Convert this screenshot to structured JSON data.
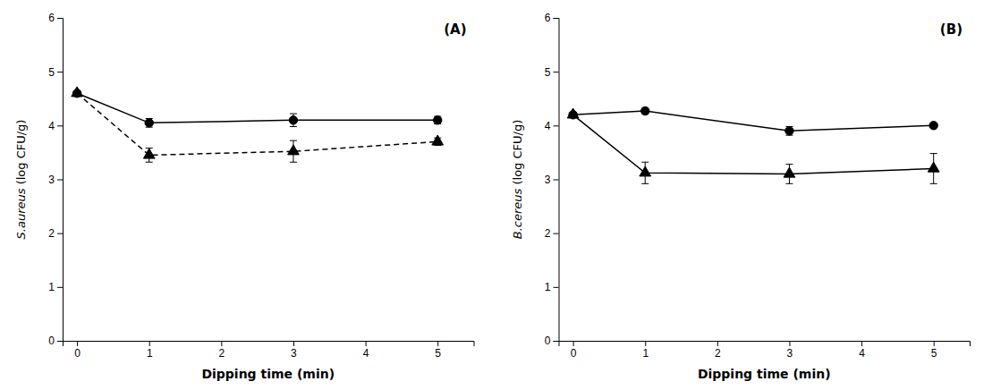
{
  "chart_data": [
    {
      "type": "line",
      "annotation": "(A)",
      "xlabel": "Dipping time (min)",
      "ylabel": "S.aureus (log CFU/g)",
      "x": [
        0,
        1,
        3,
        5
      ],
      "series": [
        {
          "values": [
            4.6,
            4.05,
            4.1,
            4.1
          ],
          "errors": [
            0.04,
            0.08,
            0.12,
            0.07
          ],
          "color": "#000000",
          "marker": "circle",
          "line_style": "solid"
        },
        {
          "values": [
            4.6,
            3.45,
            3.52,
            3.7
          ],
          "errors": [
            0.04,
            0.13,
            0.2,
            0.07
          ],
          "color": "#000000",
          "marker": "triangle",
          "line_style": "dashed"
        }
      ],
      "xlim": [
        -0.2,
        5.5
      ],
      "xticks": [
        0,
        1,
        2,
        3,
        4,
        5
      ],
      "ylim": [
        0,
        6
      ],
      "yticks": [
        0,
        1,
        2,
        3,
        4,
        5,
        6
      ],
      "grid": false
    },
    {
      "type": "line",
      "annotation": "(B)",
      "xlabel": "Dipping time (min)",
      "ylabel": "B.cereus (log CFU/g)",
      "x": [
        0,
        1,
        3,
        5
      ],
      "series": [
        {
          "values": [
            4.2,
            4.27,
            3.9,
            4.0
          ],
          "errors": [
            0.04,
            0.05,
            0.08,
            0.04
          ],
          "color": "#000000",
          "marker": "circle",
          "line_style": "solid"
        },
        {
          "values": [
            4.2,
            3.12,
            3.1,
            3.2
          ],
          "errors": [
            0.04,
            0.2,
            0.18,
            0.28
          ],
          "color": "#000000",
          "marker": "triangle",
          "line_style": "solid"
        }
      ],
      "xlim": [
        -0.2,
        5.5
      ],
      "xticks": [
        0,
        1,
        2,
        3,
        4,
        5
      ],
      "ylim": [
        0,
        6
      ],
      "yticks": [
        0,
        1,
        2,
        3,
        4,
        5,
        6
      ],
      "grid": false
    }
  ]
}
